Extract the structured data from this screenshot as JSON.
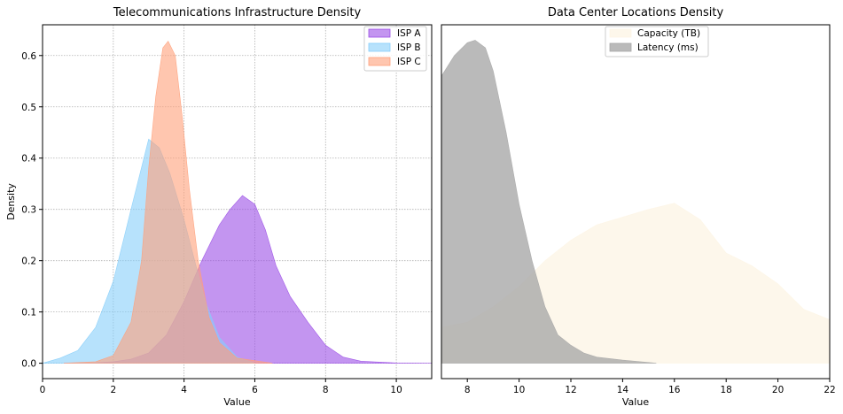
{
  "chart_data": [
    {
      "type": "area",
      "title": "Telecommunications Infrastructure Density",
      "xlabel": "Value",
      "ylabel": "Density",
      "xlim": [
        0,
        11
      ],
      "ylim": [
        -0.03,
        0.66
      ],
      "xticks": [
        "0",
        "2",
        "4",
        "6",
        "8",
        "10"
      ],
      "yticks": [
        "0.0",
        "0.1",
        "0.2",
        "0.3",
        "0.4",
        "0.5",
        "0.6"
      ],
      "grid": true,
      "legend_position": "top-right",
      "series": [
        {
          "name": "ISP A",
          "color": "#9b4ee6",
          "points": [
            [
              0.6,
              0.0
            ],
            [
              1.5,
              0.001
            ],
            [
              2.0,
              0.003
            ],
            [
              2.5,
              0.008
            ],
            [
              3.0,
              0.02
            ],
            [
              3.5,
              0.055
            ],
            [
              4.0,
              0.12
            ],
            [
              4.5,
              0.2
            ],
            [
              5.0,
              0.27
            ],
            [
              5.3,
              0.3
            ],
            [
              5.65,
              0.327
            ],
            [
              6.0,
              0.31
            ],
            [
              6.3,
              0.26
            ],
            [
              6.6,
              0.19
            ],
            [
              7.0,
              0.13
            ],
            [
              7.5,
              0.08
            ],
            [
              8.0,
              0.035
            ],
            [
              8.5,
              0.012
            ],
            [
              9.0,
              0.004
            ],
            [
              10.0,
              0.0005
            ],
            [
              11.0,
              0.0
            ]
          ]
        },
        {
          "name": "ISP B",
          "color": "#87cefa",
          "points": [
            [
              0.0,
              0.0
            ],
            [
              0.5,
              0.01
            ],
            [
              1.0,
              0.025
            ],
            [
              1.5,
              0.07
            ],
            [
              2.0,
              0.16
            ],
            [
              2.5,
              0.3
            ],
            [
              3.0,
              0.437
            ],
            [
              3.3,
              0.42
            ],
            [
              3.6,
              0.37
            ],
            [
              4.0,
              0.28
            ],
            [
              4.3,
              0.2
            ],
            [
              4.6,
              0.12
            ],
            [
              5.0,
              0.05
            ],
            [
              5.5,
              0.012
            ],
            [
              6.0,
              0.0
            ]
          ]
        },
        {
          "name": "ISP C",
          "color": "#ffa07a",
          "points": [
            [
              0.6,
              0.0
            ],
            [
              1.5,
              0.003
            ],
            [
              2.0,
              0.015
            ],
            [
              2.5,
              0.08
            ],
            [
              2.8,
              0.2
            ],
            [
              3.0,
              0.38
            ],
            [
              3.2,
              0.52
            ],
            [
              3.4,
              0.615
            ],
            [
              3.55,
              0.628
            ],
            [
              3.75,
              0.6
            ],
            [
              3.95,
              0.48
            ],
            [
              4.15,
              0.34
            ],
            [
              4.4,
              0.2
            ],
            [
              4.7,
              0.09
            ],
            [
              5.0,
              0.04
            ],
            [
              5.5,
              0.01
            ],
            [
              6.5,
              0.0
            ]
          ]
        }
      ]
    },
    {
      "type": "area",
      "title": "Data Center Locations Density",
      "xlabel": "Value",
      "xlim": [
        7,
        22
      ],
      "ylim": [
        -0.03,
        0.66
      ],
      "xticks": [
        "8",
        "10",
        "12",
        "14",
        "16",
        "18",
        "20",
        "22"
      ],
      "grid": false,
      "legend_position": "top-center",
      "series": [
        {
          "name": "Capacity (TB)",
          "color": "#fdf5e6",
          "points": [
            [
              7.0,
              0.07
            ],
            [
              8.0,
              0.08
            ],
            [
              9.0,
              0.11
            ],
            [
              10.0,
              0.15
            ],
            [
              11.0,
              0.2
            ],
            [
              12.0,
              0.24
            ],
            [
              13.0,
              0.27
            ],
            [
              14.0,
              0.285
            ],
            [
              15.0,
              0.3
            ],
            [
              16.0,
              0.312
            ],
            [
              17.0,
              0.28
            ],
            [
              18.0,
              0.215
            ],
            [
              19.0,
              0.19
            ],
            [
              20.0,
              0.155
            ],
            [
              21.0,
              0.105
            ],
            [
              22.0,
              0.085
            ]
          ]
        },
        {
          "name": "Latency (ms)",
          "color": "#a9a9a9",
          "points": [
            [
              7.0,
              0.56
            ],
            [
              7.5,
              0.6
            ],
            [
              8.0,
              0.625
            ],
            [
              8.3,
              0.63
            ],
            [
              8.7,
              0.615
            ],
            [
              9.0,
              0.57
            ],
            [
              9.5,
              0.45
            ],
            [
              10.0,
              0.31
            ],
            [
              10.5,
              0.2
            ],
            [
              11.0,
              0.11
            ],
            [
              11.5,
              0.055
            ],
            [
              12.0,
              0.035
            ],
            [
              12.5,
              0.02
            ],
            [
              13.0,
              0.012
            ],
            [
              14.0,
              0.006
            ],
            [
              15.3,
              0.0
            ]
          ]
        }
      ]
    }
  ]
}
